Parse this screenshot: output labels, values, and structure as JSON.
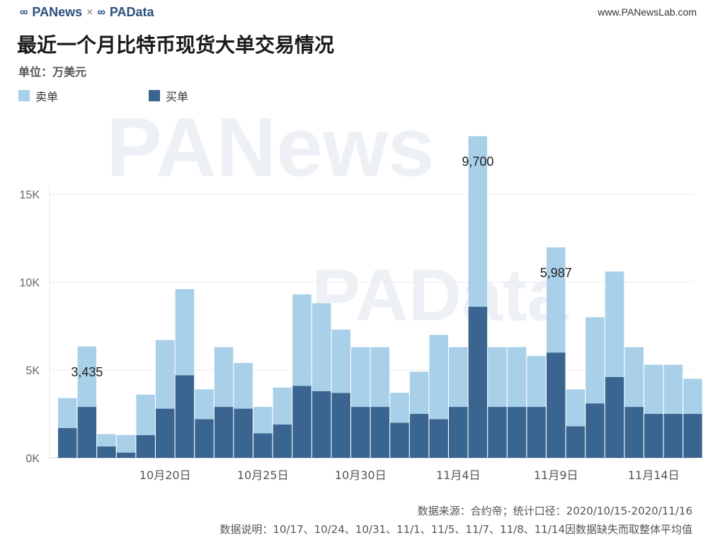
{
  "header": {
    "brand_left": "PANews",
    "brand_sep": "×",
    "brand_right": "PAData",
    "site": "www.PANewsLab.com"
  },
  "title": "最近一个月比特币现货大单交易情况",
  "unit": "单位：万美元",
  "watermark": {
    "text1": "PANews",
    "text2": "PAData"
  },
  "footer": {
    "source": "数据来源：合约帝；统计口径：2020/10/15-2020/11/16",
    "note": "数据说明：10/17、10/24、10/31、11/1、11/5、11/7、11/8、11/14因数据缺失而取整体平均值"
  },
  "colors": {
    "sell": "#a8d0e9",
    "buy": "#3a6591"
  },
  "chart_data": {
    "type": "bar",
    "stacked": true,
    "categories": [
      "10/15",
      "10/16",
      "10/17",
      "10/18",
      "10/19",
      "10/20",
      "10/21",
      "10/22",
      "10/23",
      "10/24",
      "10/25",
      "10/26",
      "10/27",
      "10/28",
      "10/29",
      "10/30",
      "10/31",
      "11/1",
      "11/2",
      "11/3",
      "11/4",
      "11/5",
      "11/6",
      "11/7",
      "11/8",
      "11/9",
      "11/10",
      "11/11",
      "11/12",
      "11/13",
      "11/14",
      "11/15",
      "11/16"
    ],
    "series": [
      {
        "name": "买单",
        "values": [
          1700,
          2900,
          650,
          300,
          1300,
          2800,
          4700,
          2200,
          2900,
          2800,
          1400,
          1900,
          4100,
          3800,
          3700,
          2900,
          2900,
          2000,
          2500,
          2200,
          2900,
          8600,
          2900,
          2900,
          2900,
          5987,
          1800,
          3100,
          4600,
          2900,
          2500,
          2500,
          2500
        ]
      },
      {
        "name": "卖单",
        "values": [
          1700,
          3435,
          700,
          1000,
          2300,
          3900,
          4900,
          1700,
          3400,
          2600,
          1500,
          2100,
          5200,
          5000,
          3600,
          3400,
          3400,
          1700,
          2400,
          4800,
          3400,
          9700,
          3400,
          3400,
          2900,
          5987,
          2100,
          4900,
          6000,
          3400,
          2800,
          2800,
          2000
        ]
      }
    ],
    "data_labels": [
      {
        "category": "10/16",
        "text": "3,435"
      },
      {
        "category": "11/5",
        "text": "9,700"
      },
      {
        "category": "11/9",
        "text": "5,987"
      }
    ],
    "x_tick_labels": [
      {
        "category": "10/20",
        "text": "10月20日"
      },
      {
        "category": "10/25",
        "text": "10月25日"
      },
      {
        "category": "10/30",
        "text": "10月30日"
      },
      {
        "category": "11/4",
        "text": "11月4日"
      },
      {
        "category": "11/9",
        "text": "11月9日"
      },
      {
        "category": "11/14",
        "text": "11月14日"
      }
    ],
    "y_ticks": [
      {
        "value": 0,
        "label": "0K"
      },
      {
        "value": 5000,
        "label": "5K"
      },
      {
        "value": 10000,
        "label": "10K"
      },
      {
        "value": 15000,
        "label": "15K"
      }
    ],
    "ylim": [
      0,
      18500
    ],
    "grid": true,
    "legend": "top-left"
  }
}
